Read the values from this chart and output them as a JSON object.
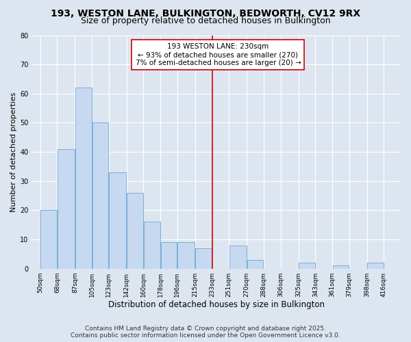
{
  "title": "193, WESTON LANE, BULKINGTON, BEDWORTH, CV12 9RX",
  "subtitle": "Size of property relative to detached houses in Bulkington",
  "xlabel": "Distribution of detached houses by size in Bulkington",
  "ylabel": "Number of detached properties",
  "bar_left_edges": [
    50,
    68,
    87,
    105,
    123,
    142,
    160,
    178,
    196,
    215,
    233,
    251,
    270,
    288,
    306,
    325,
    343,
    361,
    379,
    398
  ],
  "bar_widths": [
    18,
    19,
    18,
    18,
    19,
    18,
    18,
    18,
    19,
    18,
    18,
    19,
    18,
    18,
    19,
    18,
    18,
    18,
    19,
    18
  ],
  "bar_heights": [
    20,
    41,
    62,
    50,
    33,
    26,
    16,
    9,
    9,
    7,
    0,
    8,
    3,
    0,
    0,
    2,
    0,
    1,
    0,
    2
  ],
  "tick_labels": [
    "50sqm",
    "68sqm",
    "87sqm",
    "105sqm",
    "123sqm",
    "142sqm",
    "160sqm",
    "178sqm",
    "196sqm",
    "215sqm",
    "233sqm",
    "251sqm",
    "270sqm",
    "288sqm",
    "306sqm",
    "325sqm",
    "343sqm",
    "361sqm",
    "379sqm",
    "398sqm",
    "416sqm"
  ],
  "tick_positions": [
    50,
    68,
    87,
    105,
    123,
    142,
    160,
    178,
    196,
    215,
    233,
    251,
    270,
    288,
    306,
    325,
    343,
    361,
    379,
    398,
    416
  ],
  "bar_color": "#c6d9f1",
  "bar_edge_color": "#7aafd4",
  "vline_x": 233,
  "vline_color": "#cc0000",
  "annotation_text": "193 WESTON LANE: 230sqm\n← 93% of detached houses are smaller (270)\n7% of semi-detached houses are larger (20) →",
  "annotation_box_facecolor": "#ffffff",
  "annotation_box_edgecolor": "#cc0000",
  "ylim": [
    0,
    80
  ],
  "yticks": [
    0,
    10,
    20,
    30,
    40,
    50,
    60,
    70,
    80
  ],
  "bg_color": "#dde6f0",
  "plot_bg_color": "#dde6f0",
  "grid_color": "#ffffff",
  "footer_text": "Contains HM Land Registry data © Crown copyright and database right 2025.\nContains public sector information licensed under the Open Government Licence v3.0.",
  "title_fontsize": 10,
  "subtitle_fontsize": 9,
  "xlabel_fontsize": 8.5,
  "ylabel_fontsize": 8,
  "tick_fontsize": 6.5,
  "annotation_fontsize": 7.5,
  "footer_fontsize": 6.5
}
